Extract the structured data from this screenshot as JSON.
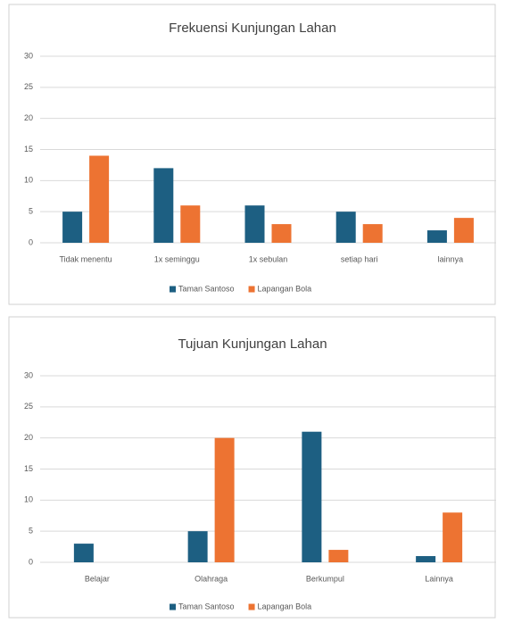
{
  "chart_data": [
    {
      "type": "bar",
      "title": "Frekuensi Kunjungan Lahan",
      "categories": [
        "Tidak menentu",
        "1x seminggu",
        "1x sebulan",
        "setiap hari",
        "lainnya"
      ],
      "series": [
        {
          "name": "Taman Santoso",
          "color": "#1d5f82",
          "values": [
            5,
            12,
            6,
            5,
            2
          ]
        },
        {
          "name": "Lapangan Bola",
          "color": "#ed7332",
          "values": [
            14,
            6,
            3,
            3,
            4
          ]
        }
      ],
      "ylim": [
        0,
        30
      ],
      "yticks": [
        0,
        5,
        10,
        15,
        20,
        25,
        30
      ],
      "grid": true,
      "legend": "bottom"
    },
    {
      "type": "bar",
      "title": "Tujuan Kunjungan Lahan",
      "categories": [
        "Belajar",
        "Olahraga",
        "Berkumpul",
        "Lainnya"
      ],
      "series": [
        {
          "name": "Taman Santoso",
          "color": "#1d5f82",
          "values": [
            3,
            5,
            21,
            1
          ]
        },
        {
          "name": "Lapangan Bola",
          "color": "#ed7332",
          "values": [
            0,
            20,
            2,
            8
          ]
        }
      ],
      "ylim": [
        0,
        30
      ],
      "yticks": [
        0,
        5,
        10,
        15,
        20,
        25,
        30
      ],
      "grid": true,
      "legend": "bottom"
    }
  ]
}
